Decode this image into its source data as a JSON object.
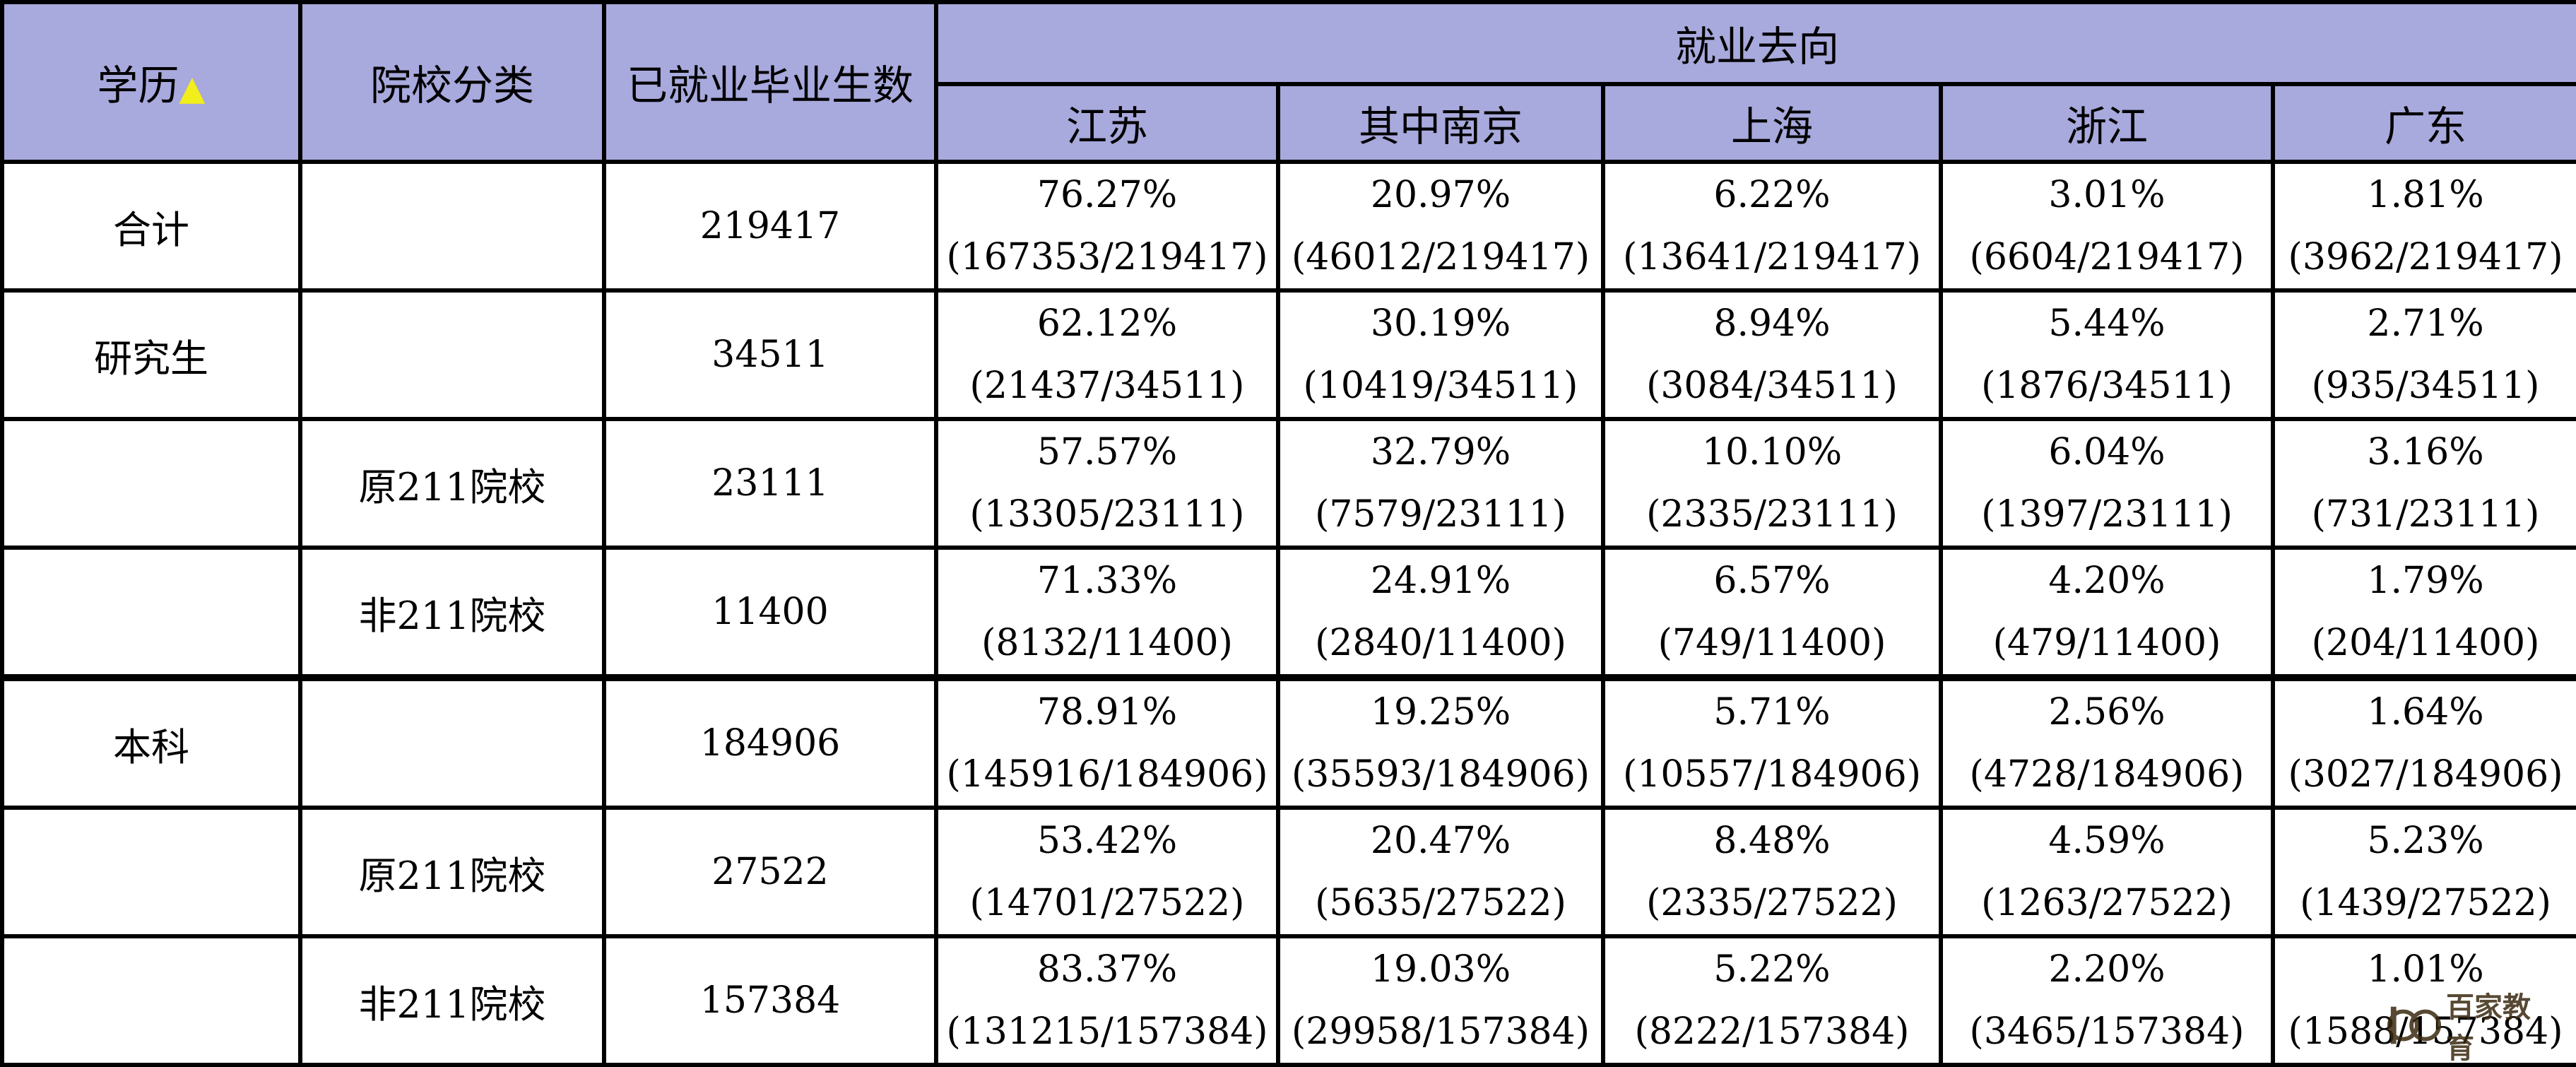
{
  "header": {
    "education_label": "学历",
    "education_sort_icon": "triangle-up-icon",
    "school_type_label": "院校分类",
    "employed_label": "已就业毕业生数",
    "destination_label": "就业去向",
    "destinations": [
      "江苏",
      "其中南京",
      "上海",
      "浙江",
      "广东"
    ]
  },
  "rows": [
    {
      "education": "合计",
      "school_type": "",
      "employed": "219417",
      "cells": [
        {
          "pct": "76.27%",
          "frac": "(167353/219417)"
        },
        {
          "pct": "20.97%",
          "frac": "(46012/219417)"
        },
        {
          "pct": "6.22%",
          "frac": "(13641/219417)"
        },
        {
          "pct": "3.01%",
          "frac": "(6604/219417)"
        },
        {
          "pct": "1.81%",
          "frac": "(3962/219417)"
        }
      ]
    },
    {
      "education": "研究生",
      "school_type": "",
      "employed": "34511",
      "cells": [
        {
          "pct": "62.12%",
          "frac": "(21437/34511)"
        },
        {
          "pct": "30.19%",
          "frac": "(10419/34511)"
        },
        {
          "pct": "8.94%",
          "frac": "(3084/34511)"
        },
        {
          "pct": "5.44%",
          "frac": "(1876/34511)"
        },
        {
          "pct": "2.71%",
          "frac": "(935/34511)"
        }
      ]
    },
    {
      "education": "",
      "school_type": "原211院校",
      "employed": "23111",
      "cells": [
        {
          "pct": "57.57%",
          "frac": "(13305/23111)"
        },
        {
          "pct": "32.79%",
          "frac": "(7579/23111)"
        },
        {
          "pct": "10.10%",
          "frac": "(2335/23111)"
        },
        {
          "pct": "6.04%",
          "frac": "(1397/23111)"
        },
        {
          "pct": "3.16%",
          "frac": "(731/23111)"
        }
      ]
    },
    {
      "education": "",
      "school_type": "非211院校",
      "employed": "11400",
      "cells": [
        {
          "pct": "71.33%",
          "frac": "(8132/11400)"
        },
        {
          "pct": "24.91%",
          "frac": "(2840/11400)"
        },
        {
          "pct": "6.57%",
          "frac": "(749/11400)"
        },
        {
          "pct": "4.20%",
          "frac": "(479/11400)"
        },
        {
          "pct": "1.79%",
          "frac": "(204/11400)"
        }
      ]
    },
    {
      "education": "本科",
      "school_type": "",
      "employed": "184906",
      "cells": [
        {
          "pct": "78.91%",
          "frac": "(145916/184906)"
        },
        {
          "pct": "19.25%",
          "frac": "(35593/184906)"
        },
        {
          "pct": "5.71%",
          "frac": "(10557/184906)"
        },
        {
          "pct": "2.56%",
          "frac": "(4728/184906)"
        },
        {
          "pct": "1.64%",
          "frac": "(3027/184906)"
        }
      ]
    },
    {
      "education": "",
      "school_type": "原211院校",
      "employed": "27522",
      "cells": [
        {
          "pct": "53.42%",
          "frac": "(14701/27522)"
        },
        {
          "pct": "20.47%",
          "frac": "(5635/27522)"
        },
        {
          "pct": "8.48%",
          "frac": "(2335/27522)"
        },
        {
          "pct": "4.59%",
          "frac": "(1263/27522)"
        },
        {
          "pct": "5.23%",
          "frac": "(1439/27522)"
        }
      ]
    },
    {
      "education": "",
      "school_type": "非211院校",
      "employed": "157384",
      "cells": [
        {
          "pct": "83.37%",
          "frac": "(131215/157384)"
        },
        {
          "pct": "19.03%",
          "frac": "(29958/157384)"
        },
        {
          "pct": "5.22%",
          "frac": "(8222/157384)"
        },
        {
          "pct": "2.20%",
          "frac": "(3465/157384)"
        },
        {
          "pct": "1.01%",
          "frac": "(1588/157384)"
        }
      ]
    }
  ],
  "watermark": {
    "icon": "logo-icon",
    "text": "百家教育"
  },
  "colors": {
    "header_bg": "#a8a9dc",
    "sort_triangle": "#f2ee1c",
    "border": "#000000"
  }
}
